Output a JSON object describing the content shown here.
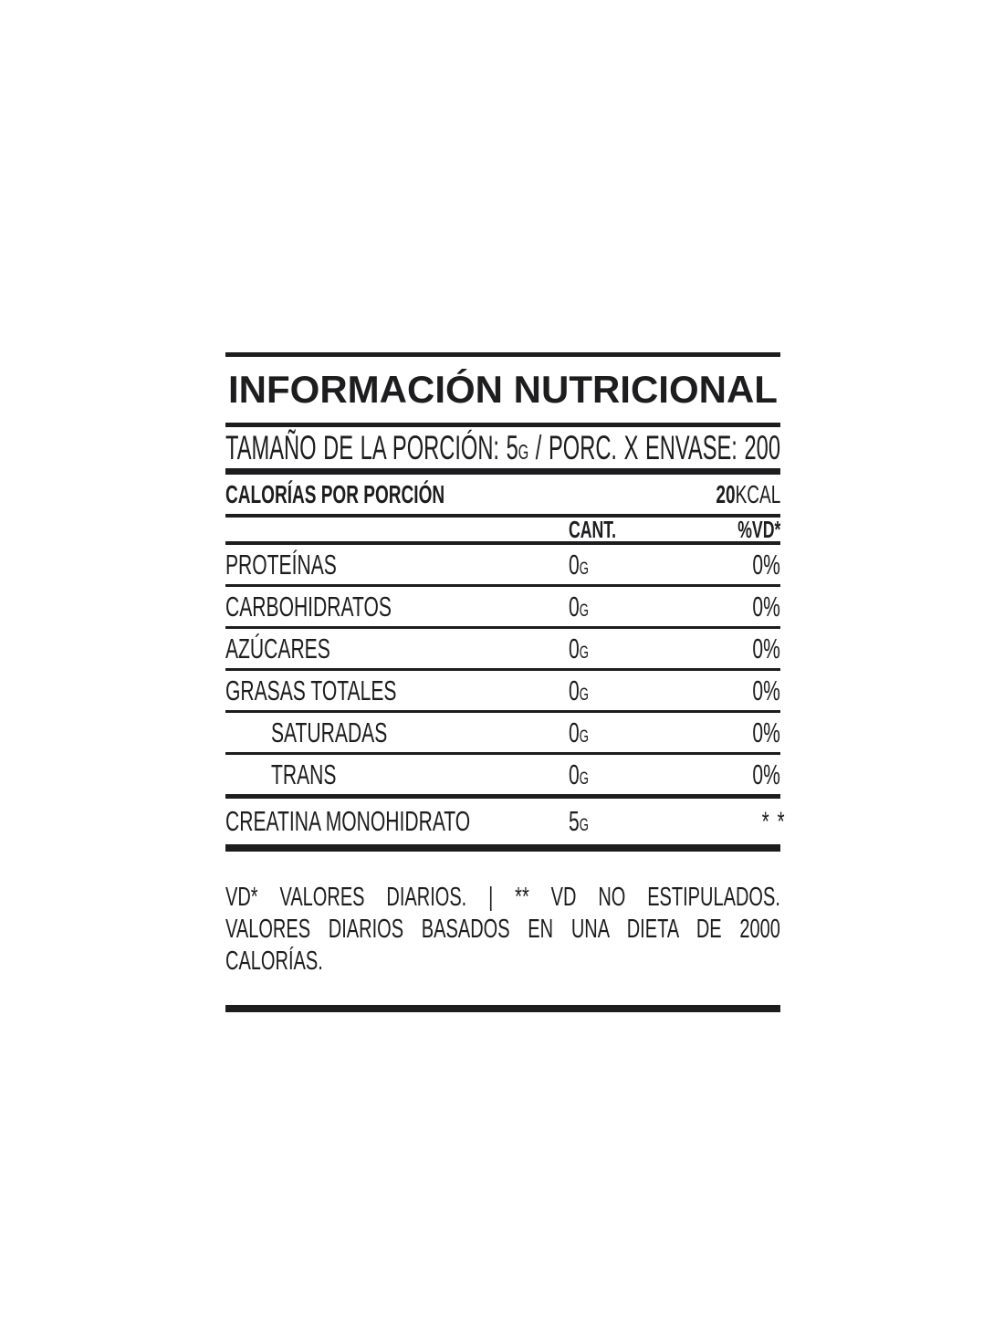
{
  "label": {
    "title": "INFORMACIÓN NUTRICIONAL",
    "serving": {
      "label": "TAMAÑO DE LA PORCIÓN:",
      "amount": "5",
      "unit": "G",
      "separator": "/",
      "per_container_label": "PORC. X ENVASE:",
      "per_container": "200"
    },
    "calories": {
      "label": "CALORÍAS POR PORCIÓN",
      "value": "20",
      "unit": "KCAL"
    },
    "columns": {
      "amount": "CANT.",
      "daily_value": "%VD*"
    },
    "rows": [
      {
        "label": "PROTEÍNAS",
        "amount": "0",
        "unit": "G",
        "dv": "0%"
      },
      {
        "label": "CARBOHIDRATOS",
        "amount": "0",
        "unit": "G",
        "dv": "0%"
      },
      {
        "label": "AZÚCARES",
        "amount": "0",
        "unit": "G",
        "dv": "0%"
      },
      {
        "label": "GRASAS TOTALES",
        "amount": "0",
        "unit": "G",
        "dv": "0%"
      },
      {
        "label": "SATURADAS",
        "amount": "0",
        "unit": "G",
        "dv": "0%"
      },
      {
        "label": "TRANS",
        "amount": "0",
        "unit": "G",
        "dv": "0%"
      },
      {
        "label": "CREATINA MONOHIDRATO",
        "amount": "5",
        "unit": "G",
        "dv": "**"
      }
    ],
    "footnote_line1": "VD* VALORES DIARIOS. | ** VD NO ESTIPULADOS.",
    "footnote_line2": "VALORES DIARIOS BASADOS EN UNA DIETA DE 2000 CALORÍAS.",
    "colors": {
      "ink": "#1d1d1f",
      "background": "#ffffff"
    }
  }
}
